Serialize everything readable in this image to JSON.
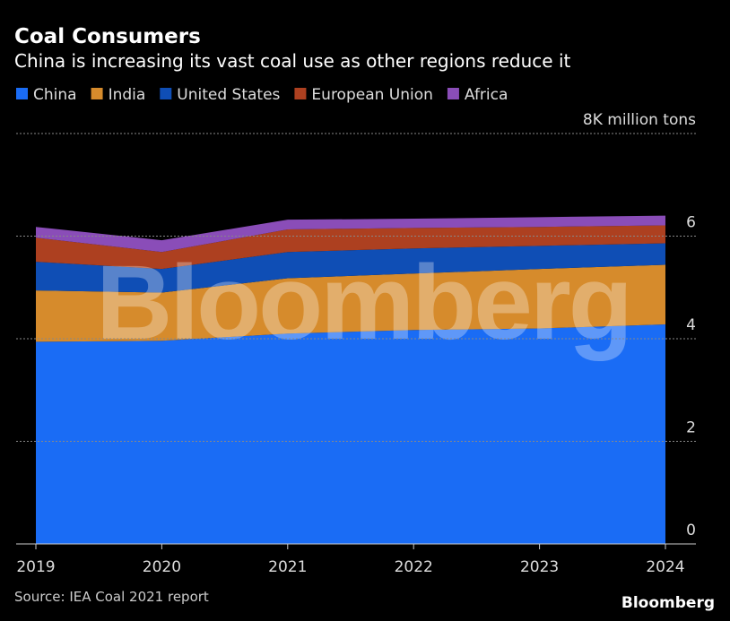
{
  "chart_data": {
    "type": "stacked_area",
    "title": "Coal Consumers",
    "subtitle": "China is increasing its vast coal use as other regions reduce it",
    "categories": [
      "2019",
      "2020",
      "2021",
      "2022",
      "2023",
      "2024"
    ],
    "series": [
      {
        "name": "China",
        "color": "#1a6cf5",
        "values": [
          3.94,
          3.96,
          4.1,
          4.17,
          4.2,
          4.28
        ]
      },
      {
        "name": "India",
        "color": "#d68b2c",
        "values": [
          1.0,
          0.94,
          1.08,
          1.1,
          1.16,
          1.16
        ]
      },
      {
        "name": "United States",
        "color": "#0f4eb5",
        "values": [
          0.56,
          0.46,
          0.51,
          0.49,
          0.45,
          0.42
        ]
      },
      {
        "name": "European Union",
        "color": "#ad4020",
        "values": [
          0.47,
          0.33,
          0.44,
          0.4,
          0.37,
          0.35
        ]
      },
      {
        "name": "Africa",
        "color": "#8a4db8",
        "values": [
          0.21,
          0.23,
          0.19,
          0.18,
          0.19,
          0.19
        ]
      }
    ],
    "ylim": [
      0,
      8
    ],
    "yticks": [
      0,
      2,
      4,
      6,
      {
        "value": 8,
        "label": "8K million tons"
      }
    ],
    "grid": true,
    "watermark": "Bloomberg",
    "source": "Source: IEA Coal 2021 report",
    "brand": "Bloomberg"
  }
}
